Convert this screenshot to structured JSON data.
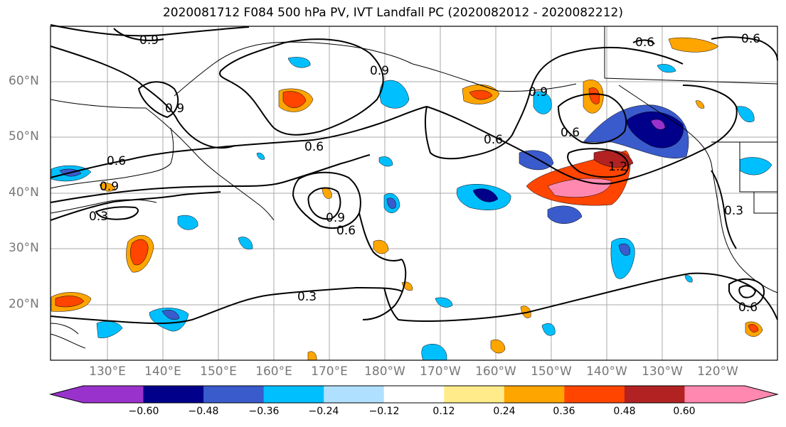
{
  "title": "2020081712 F084 500 hPa PV, IVT Landfall PC (2020082012 - 2020082212)",
  "lat_labels": [
    "60°N",
    "50°N",
    "40°N",
    "30°N",
    "20°N"
  ],
  "lon_labels": [
    "130°E",
    "140°E",
    "150°E",
    "160°E",
    "170°E",
    "180°W",
    "170°W",
    "160°W",
    "150°W",
    "140°W",
    "130°W",
    "120°W"
  ],
  "contour_labels": [
    "0.9",
    "0.9",
    "0.9",
    "0.6",
    "0.6",
    "0.9",
    "0.9",
    "0.6",
    "0.6",
    "0.3",
    "0.6",
    "0.9",
    "0.6",
    "0.6",
    "1.2",
    "0.3",
    "0.6",
    "0.3"
  ],
  "colorbar": {
    "colors": [
      "#9932CC",
      "#00008B",
      "#3A5BCC",
      "#00BFFF",
      "#B0E0FF",
      "#FFFFFF",
      "#FFEB8A",
      "#FFA500",
      "#FF4500",
      "#B22222",
      "#FF88B0"
    ],
    "ticks": [
      "−0.60",
      "−0.48",
      "−0.36",
      "−0.24",
      "−0.12",
      "0.12",
      "0.24",
      "0.36",
      "0.48",
      "0.60"
    ]
  }
}
